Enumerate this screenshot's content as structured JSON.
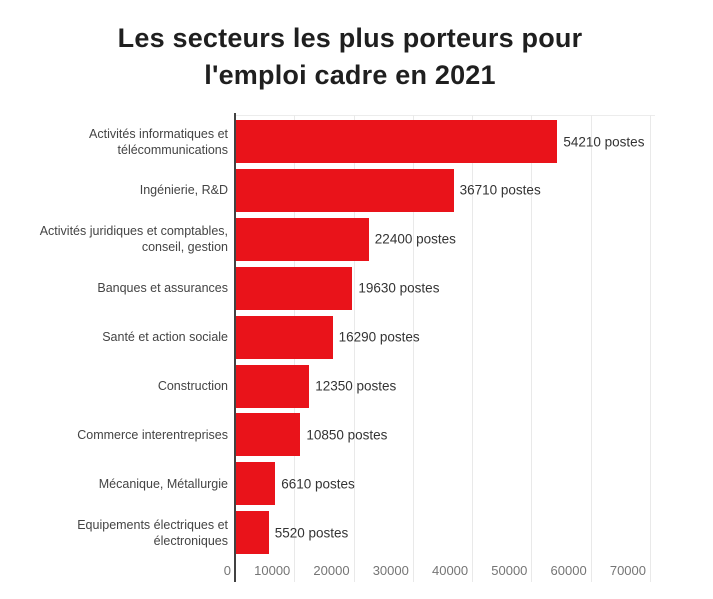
{
  "chart_data": {
    "type": "bar",
    "orientation": "horizontal",
    "title": "Les secteurs les plus porteurs pour l'emploi cadre en 2021",
    "title_lines": [
      "Les secteurs les plus porteurs pour",
      "l'emploi cadre en 2021"
    ],
    "categories": [
      "Activités informatiques et télécommunications",
      "Ingénierie, R&D",
      "Activités juridiques et comptables, conseil, gestion",
      "Banques et assurances",
      "Santé et action sociale",
      "Construction",
      "Commerce interentreprises",
      "Mécanique, Métallurgie",
      "Equipements électriques et électroniques"
    ],
    "values": [
      54210,
      36710,
      22400,
      19630,
      16290,
      12350,
      10850,
      6610,
      5520
    ],
    "value_labels": [
      "54210 postes",
      "36710 postes",
      "22400 postes",
      "19630 postes",
      "16290 postes",
      "12350 postes",
      "10850 postes",
      "6610 postes",
      "5520 postes"
    ],
    "xlabel": "",
    "ylabel": "",
    "xlim": [
      0,
      70000
    ],
    "x_ticks": [
      0,
      10000,
      20000,
      30000,
      40000,
      50000,
      60000,
      70000
    ],
    "x_tick_labels": [
      "0",
      "10000",
      "20000",
      "30000",
      "40000",
      "50000",
      "60000",
      "70000"
    ],
    "grid": "vertical",
    "legend": "none"
  },
  "colors": {
    "bar": "#e9131a",
    "axis_line": "#424242",
    "gridline": "#e9e9e9",
    "tick_text": "#757575",
    "category_text": "#444444",
    "value_text": "#333333",
    "title_text": "#1f1f1f",
    "background": "#ffffff"
  }
}
